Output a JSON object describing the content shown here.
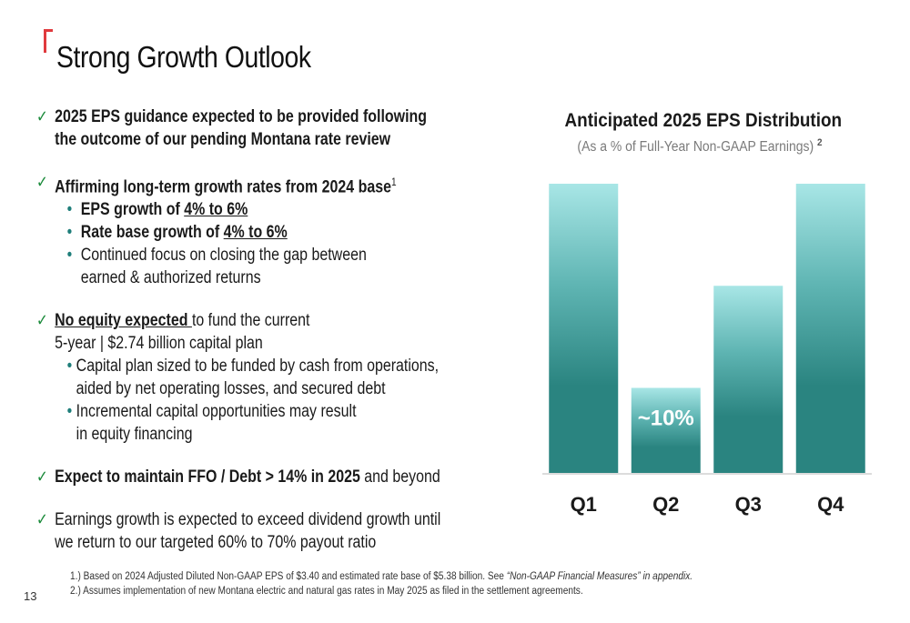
{
  "slide": {
    "title": "Strong Growth Outlook",
    "page_number": "13"
  },
  "bullets": {
    "b1_line1": "2025 EPS guidance expected to be provided following",
    "b1_line2": "the outcome of our pending Montana rate review",
    "b2_text": "Affirming long-term growth rates from 2024 base",
    "b2_note": "1",
    "b2_sub1_label": "EPS growth of ",
    "b2_sub1_value": "4% to 6%",
    "b2_sub2_label": "Rate base growth of ",
    "b2_sub2_value": "4% to 6%",
    "b2_sub3_line1": "Continued focus on closing the gap between",
    "b2_sub3_line2": "earned & authorized returns",
    "b3_bold": "No equity expected ",
    "b3_rest": "to fund the current",
    "b3_line2": "5-year | $2.74 billion capital plan",
    "b3_sub1_line1": "Capital plan sized to be funded by cash from operations,",
    "b3_sub1_line2": "aided by net operating losses, and secured debt",
    "b3_sub2_line1": "Incremental capital opportunities may result",
    "b3_sub2_line2": "in equity financing",
    "b4_bold": "Expect to maintain FFO / Debt > 14% in 2025",
    "b4_rest": " and beyond",
    "b5_line1": "Earnings growth is expected to exceed dividend growth until",
    "b5_line2": "we return to our targeted 60% to 70% payout ratio"
  },
  "footnotes": {
    "f1_text": "1.) Based on 2024 Adjusted Diluted Non-GAAP EPS of $3.40 and estimated rate base of $5.38 billion. See ",
    "f1_italic": "“Non-GAAP Financial Measures” in appendix.",
    "f2_text": "2.) Assumes implementation of new Montana electric and natural gas rates in May 2025 as filed in the settlement agreements."
  },
  "chart_data": {
    "type": "bar",
    "title": "Anticipated 2025 EPS Distribution",
    "subtitle": "(As a % of Full-Year Non-GAAP Earnings)",
    "subtitle_note": "2",
    "categories": [
      "Q1",
      "Q2",
      "Q3",
      "Q4"
    ],
    "values": [
      34,
      10,
      22,
      34
    ],
    "unit": "%",
    "data_labels": [
      "",
      "~10%",
      "",
      ""
    ],
    "ylim": [
      0,
      34
    ],
    "grid": false,
    "bar_color_top": "#a8e6e6",
    "bar_color_bottom": "#2a8480"
  },
  "colors": {
    "accent": "#e03a3e",
    "check": "#1a8a3a"
  }
}
